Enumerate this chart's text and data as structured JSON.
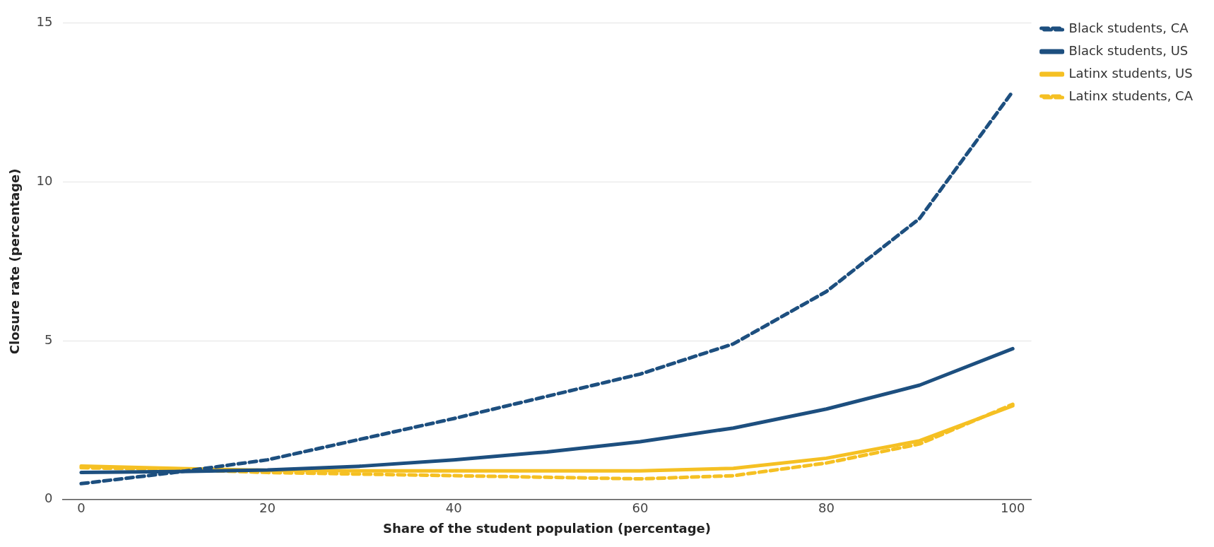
{
  "chart_data": {
    "type": "line",
    "xlabel": "Share of the student population (percentage)",
    "ylabel": "Closure rate (percentage)",
    "x": [
      0,
      10,
      20,
      30,
      40,
      50,
      60,
      70,
      80,
      90,
      100
    ],
    "xlim": [
      -2,
      102
    ],
    "xticks": [
      0,
      20,
      40,
      60,
      80,
      100
    ],
    "ylim": [
      0,
      15
    ],
    "yticks": [
      0,
      5,
      10,
      15
    ],
    "grid": "y",
    "legend": "top right",
    "marker": "none",
    "series": [
      {
        "name": "Black students, CA",
        "color": "#1d4f7f",
        "line_style": "dashed",
        "values": [
          0.5,
          0.85,
          1.25,
          1.9,
          2.55,
          3.25,
          3.95,
          4.9,
          6.55,
          8.85,
          12.85
        ]
      },
      {
        "name": "Black students, US",
        "color": "#1d4f7f",
        "line_style": "solid",
        "values": [
          0.85,
          0.88,
          0.93,
          1.05,
          1.25,
          1.5,
          1.82,
          2.25,
          2.85,
          3.6,
          4.75
        ]
      },
      {
        "name": "Latinx students, US",
        "color": "#f5c023",
        "line_style": "solid",
        "values": [
          1.05,
          0.98,
          0.92,
          0.9,
          0.9,
          0.9,
          0.9,
          0.98,
          1.3,
          1.85,
          2.95
        ]
      },
      {
        "name": "Latinx students, CA",
        "color": "#f5c023",
        "line_style": "dashed",
        "values": [
          1.0,
          0.95,
          0.85,
          0.8,
          0.75,
          0.7,
          0.65,
          0.75,
          1.15,
          1.75,
          3.0
        ]
      }
    ]
  }
}
